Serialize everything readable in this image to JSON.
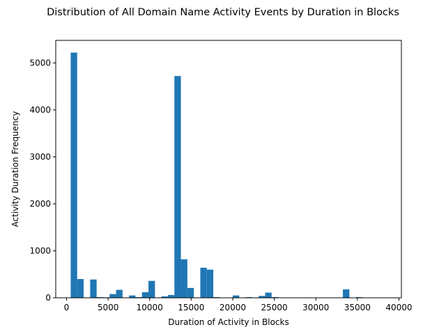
{
  "chart_data": {
    "type": "bar",
    "title": "Distribution of All Domain Name Activity Events by Duration in Blocks",
    "xlabel": "Duration of Activity in Blocks",
    "ylabel": "Activity Duration Frequency",
    "xlim": [
      -1300,
      40300
    ],
    "ylim": [
      0,
      5480
    ],
    "xticks": [
      0,
      5000,
      10000,
      15000,
      20000,
      25000,
      30000,
      35000,
      40000
    ],
    "yticks": [
      0,
      1000,
      2000,
      3000,
      4000,
      5000
    ],
    "bar_color": "#1f77b4",
    "bin_width": 780,
    "bin_start": 500,
    "values": [
      5220,
      400,
      5,
      390,
      15,
      10,
      80,
      170,
      0,
      50,
      15,
      120,
      360,
      0,
      30,
      60,
      4720,
      820,
      210,
      0,
      640,
      600,
      15,
      0,
      0,
      50,
      0,
      15,
      0,
      40,
      110,
      15,
      0,
      0,
      0,
      0,
      0,
      0,
      0,
      0,
      0,
      0,
      180,
      0,
      15,
      0,
      0,
      0,
      0,
      0
    ]
  }
}
